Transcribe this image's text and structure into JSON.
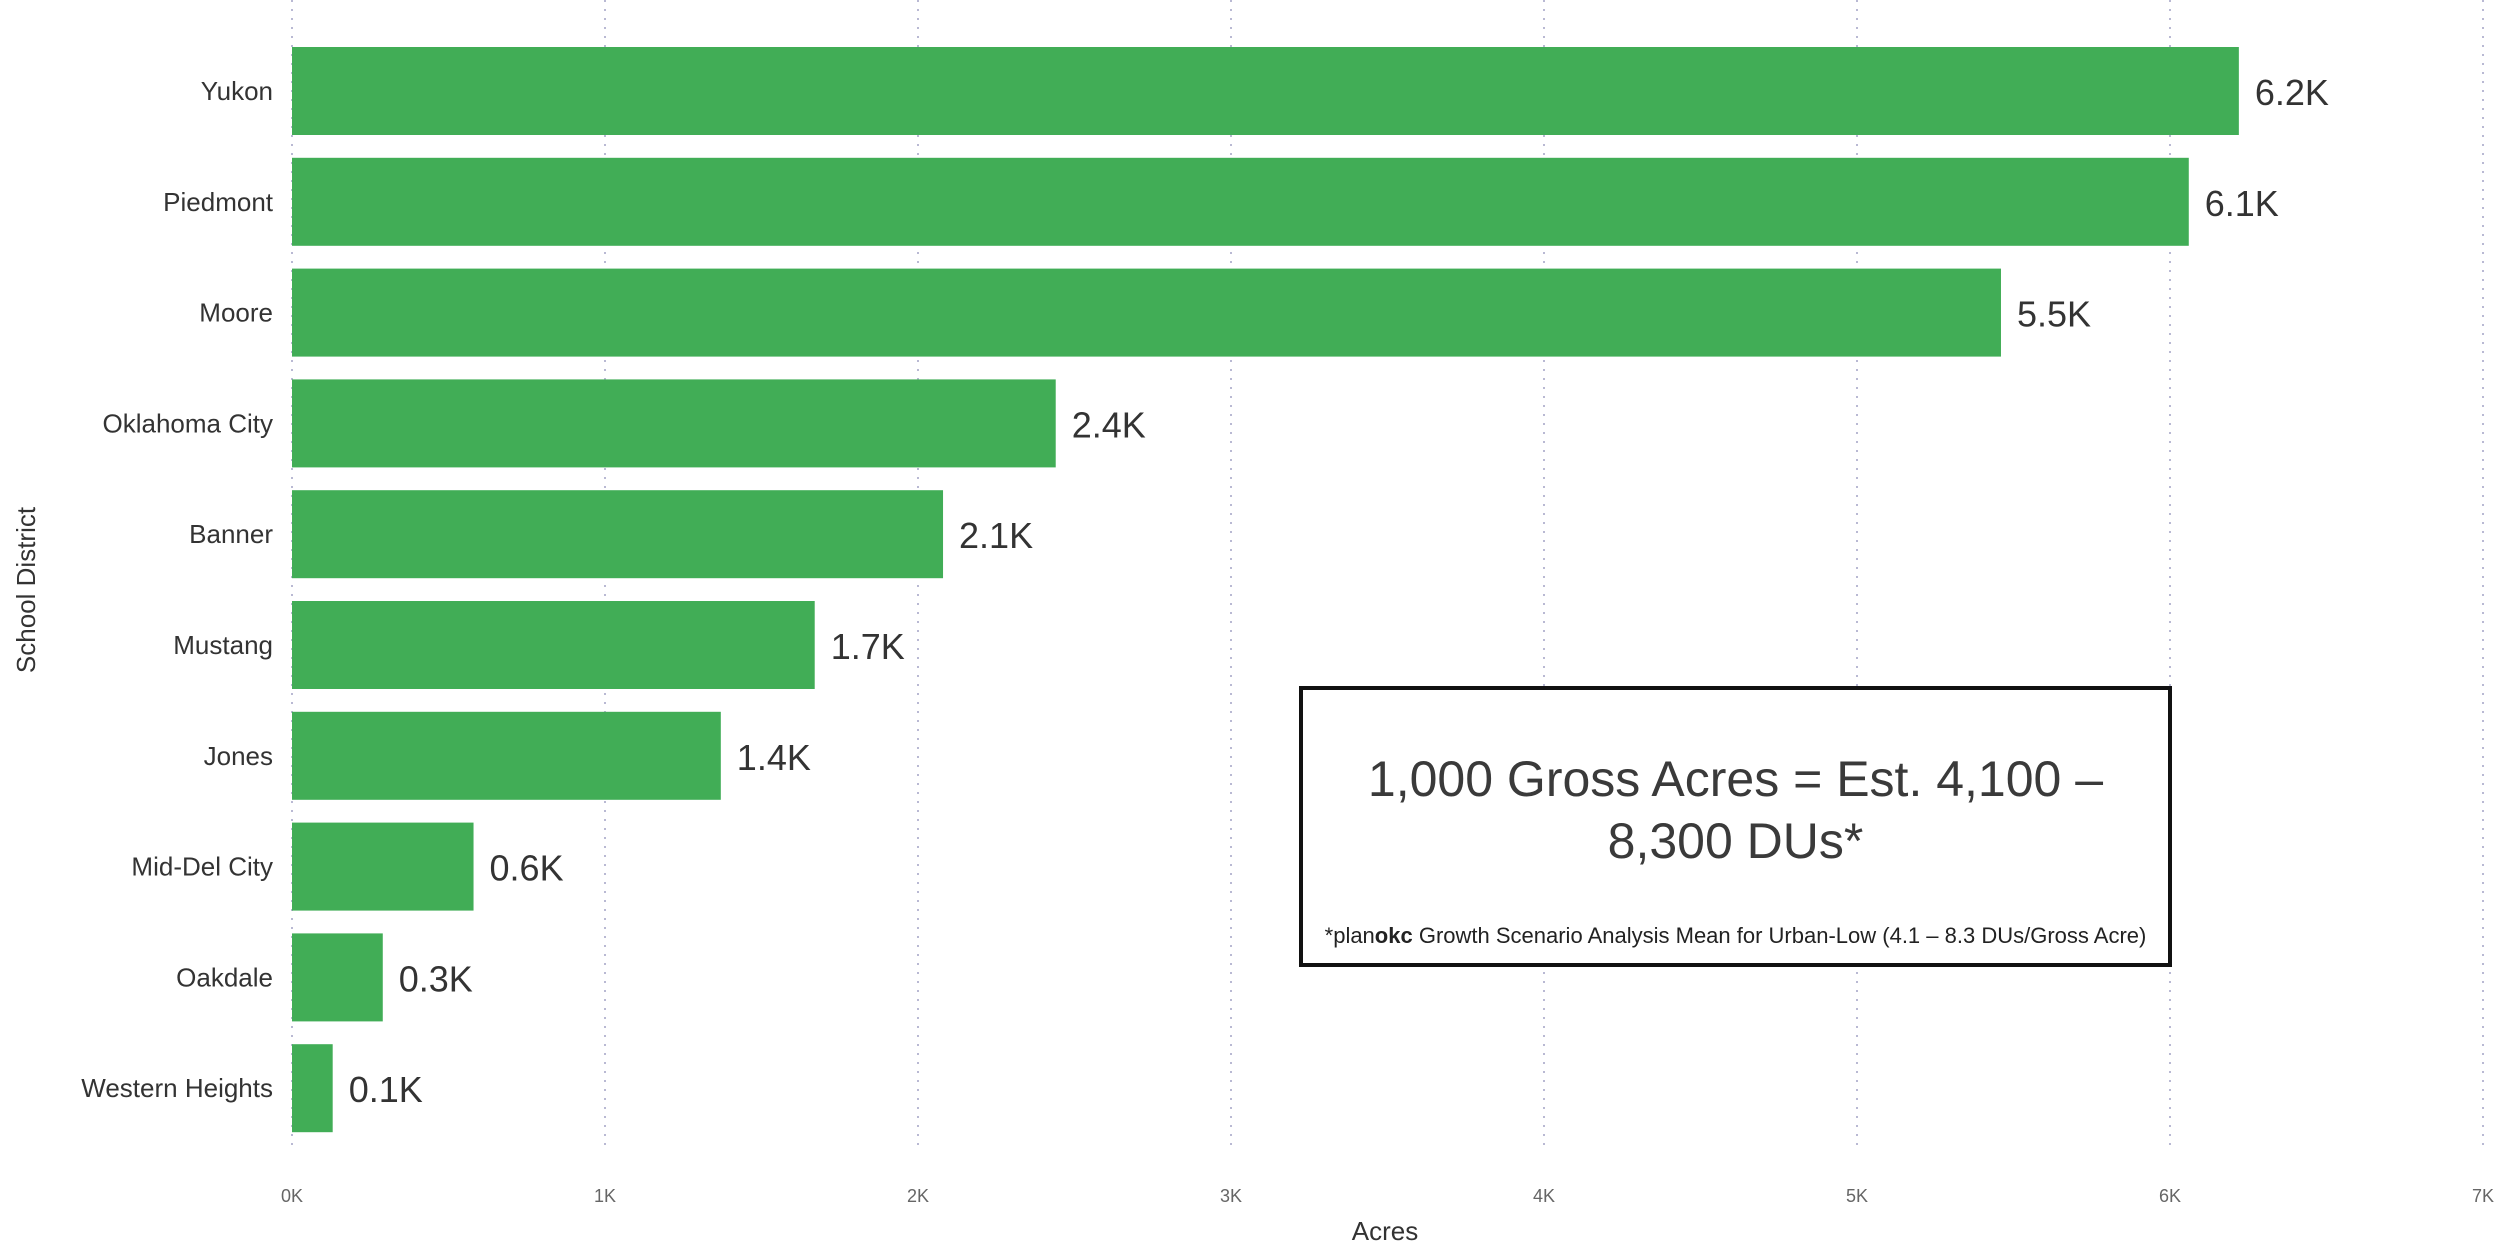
{
  "chart_data": {
    "type": "bar",
    "orientation": "horizontal",
    "categories": [
      "Yukon",
      "Piedmont",
      "Moore",
      "Oklahoma City",
      "Banner",
      "Mustang",
      "Jones",
      "Mid-Del City",
      "Oakdale",
      "Western Heights"
    ],
    "values": [
      6.22,
      6.06,
      5.46,
      2.44,
      2.08,
      1.67,
      1.37,
      0.58,
      0.29,
      0.13
    ],
    "value_labels": [
      "6.2K",
      "6.1K",
      "5.5K",
      "2.4K",
      "2.1K",
      "1.7K",
      "1.4K",
      "0.6K",
      "0.3K",
      "0.1K"
    ],
    "xlabel": "Acres",
    "ylabel": "School District",
    "xlim": [
      0,
      7
    ],
    "x_ticks": [
      "0K",
      "1K",
      "2K",
      "3K",
      "4K",
      "5K",
      "6K",
      "7K"
    ],
    "grid": "vertical dotted",
    "bar_color": "#41ad56"
  },
  "callout": {
    "main": "1,000 Gross Acres = Est. 4,100 – 8,300 DUs*",
    "foot_prefix": "*plan",
    "foot_bold": "okc",
    "foot_rest": " Growth Scenario Analysis Mean for Urban-Low (4.1 – 8.3 DUs/Gross Acre)"
  }
}
